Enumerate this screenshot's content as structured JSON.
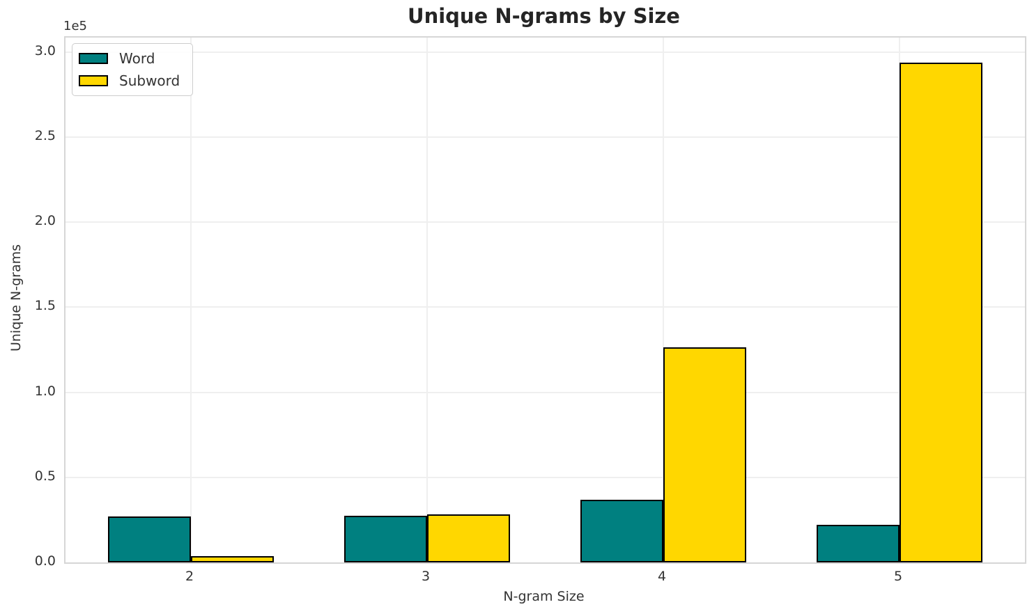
{
  "chart_data": {
    "type": "bar",
    "title": "Unique N-grams by Size",
    "xlabel": "N-gram Size",
    "ylabel": "Unique N-grams",
    "y_offset_label": "1e5",
    "categories": [
      "2",
      "3",
      "4",
      "5"
    ],
    "series": [
      {
        "name": "Word",
        "color": "#008080",
        "values": [
          26800,
          27500,
          37000,
          22000
        ]
      },
      {
        "name": "Subword",
        "color": "#FFD700",
        "values": [
          3700,
          28200,
          126300,
          293600
        ]
      }
    ],
    "bar_edge_color": "#000000",
    "ylim": [
      0,
      308500
    ],
    "yticks": [
      {
        "value": 0,
        "label": "0.0"
      },
      {
        "value": 50000,
        "label": "0.5"
      },
      {
        "value": 100000,
        "label": "1.0"
      },
      {
        "value": 150000,
        "label": "1.5"
      },
      {
        "value": 200000,
        "label": "2.0"
      },
      {
        "value": 250000,
        "label": "2.5"
      },
      {
        "value": 300000,
        "label": "3.0"
      }
    ],
    "legend": {
      "position": "upper left",
      "entries": [
        "Word",
        "Subword"
      ]
    },
    "grid": true,
    "colors": {
      "grid": "#efefef",
      "spine": "#d6d6d6",
      "text": "#333333"
    }
  }
}
